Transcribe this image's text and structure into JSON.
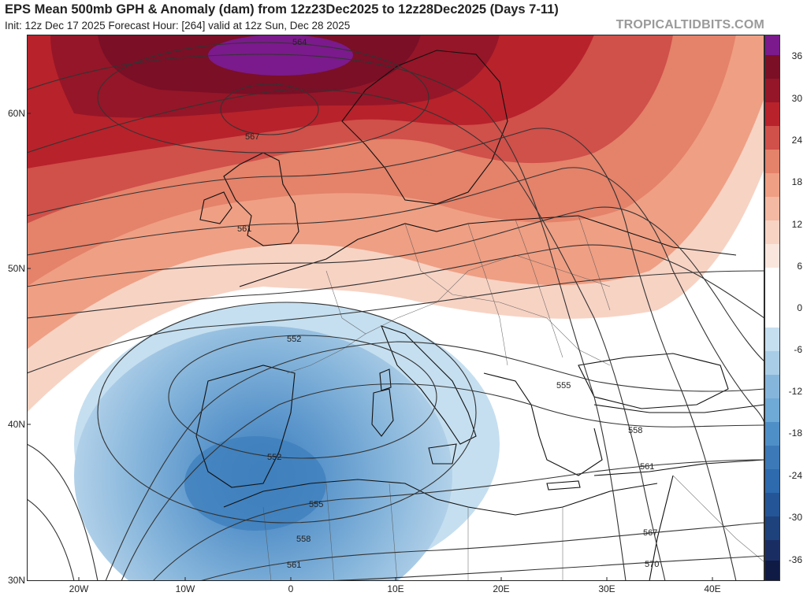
{
  "header": {
    "title": "EPS Mean 500mb GPH & Anomaly (dam) from 12z23Dec2025 to 12z28Dec2025 (Days 7-11)",
    "subtitle": "Init: 12z Dec 17 2025   Forecast Hour: [264]   valid at 12z Sun, Dec 28 2025",
    "brand": "TROPICALTIDBITS.COM"
  },
  "map": {
    "lat_labels": [
      "60N",
      "50N",
      "40N",
      "30N"
    ],
    "lon_labels": [
      "20W",
      "10W",
      "0",
      "10E",
      "20E",
      "30E",
      "40E"
    ],
    "contour_labels": [
      "564",
      "567",
      "561",
      "552",
      "552",
      "555",
      "555",
      "558",
      "558",
      "561",
      "561",
      "567",
      "570"
    ]
  },
  "colorbar": {
    "labels": [
      "36",
      "30",
      "24",
      "18",
      "12",
      "6",
      "0",
      "-6",
      "-12",
      "-18",
      "-24",
      "-30",
      "-36"
    ],
    "colors": {
      "purple": "#7b1a8c",
      "dark_red": "#7a0f26",
      "red": "#b8222b",
      "light_red": "#e4826a",
      "pale_red": "#f7d3c4",
      "white": "#ffffff",
      "pale_blue": "#c5dff0",
      "blue": "#6fa9d6",
      "dark_blue": "#2d6aae",
      "navy": "#1a2d63"
    }
  }
}
